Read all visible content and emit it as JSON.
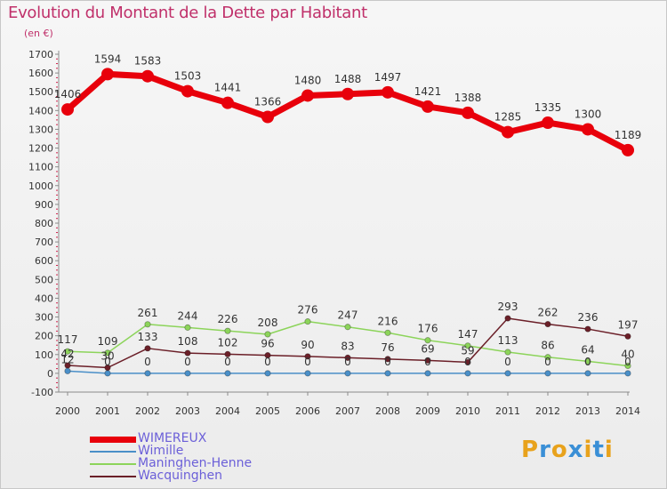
{
  "title": "Evolution du Montant de la Dette par Habitant",
  "subtitle": "(en €)",
  "logo": {
    "text": "Proxiti",
    "letters": [
      "P",
      "r",
      "o",
      "x",
      "i",
      "t",
      "i"
    ],
    "colors": [
      "#e8a21c",
      "#3a8fd6",
      "#e8a21c",
      "#3a8fd6",
      "#e8a21c",
      "#3a8fd6",
      "#e8a21c"
    ]
  },
  "chart_data": {
    "type": "line",
    "title": "Evolution du Montant de la Dette par Habitant",
    "subtitle": "(en €)",
    "x": [
      2000,
      2001,
      2002,
      2003,
      2004,
      2005,
      2006,
      2007,
      2008,
      2009,
      2010,
      2011,
      2012,
      2013,
      2014
    ],
    "y_ticks": [
      -100,
      0,
      100,
      200,
      300,
      400,
      500,
      600,
      700,
      800,
      900,
      1000,
      1100,
      1200,
      1300,
      1400,
      1500,
      1600,
      1700
    ],
    "ylim": [
      -100,
      1700
    ],
    "grid": false,
    "legend": "bottom-left",
    "series": [
      {
        "name": "WIMEREUX",
        "color": "#e8000b",
        "values": [
          1406,
          1594,
          1583,
          1503,
          1441,
          1366,
          1480,
          1488,
          1497,
          1421,
          1388,
          1285,
          1335,
          1300,
          1189
        ]
      },
      {
        "name": "Wimille",
        "color": "#4a8fc8",
        "values": [
          12,
          0,
          0,
          0,
          0,
          0,
          0,
          0,
          0,
          0,
          0,
          0,
          0,
          0,
          0
        ]
      },
      {
        "name": "Maninghen-Henne",
        "color": "#8cd45a",
        "values": [
          117,
          109,
          261,
          244,
          226,
          208,
          276,
          247,
          216,
          176,
          147,
          113,
          86,
          64,
          40
        ]
      },
      {
        "name": "Wacquinghen",
        "color": "#6b1f28",
        "values": [
          42,
          30,
          133,
          108,
          102,
          96,
          90,
          83,
          76,
          69,
          59,
          293,
          262,
          236,
          197
        ]
      }
    ]
  }
}
